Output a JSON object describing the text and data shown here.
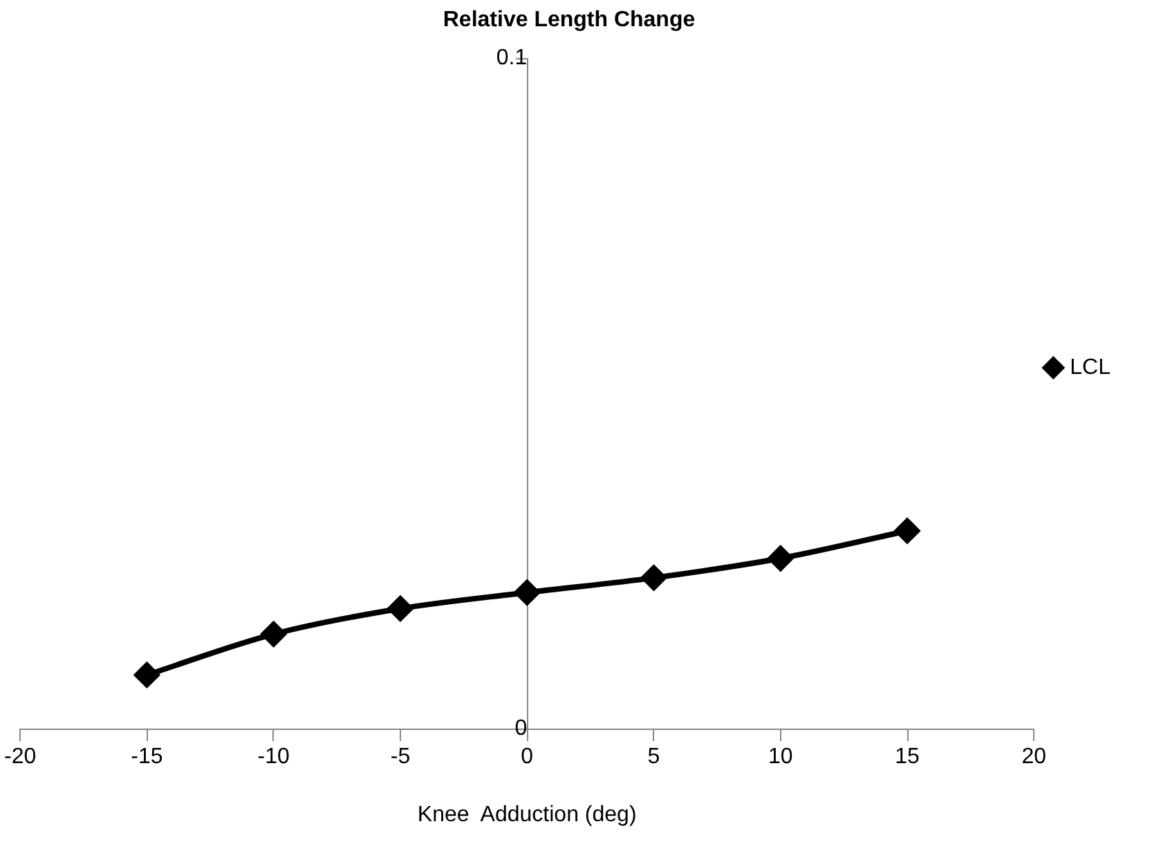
{
  "chart_data": {
    "type": "line",
    "title": "Relative Length Change",
    "xlabel": "Knee  Adduction (deg)",
    "x": [
      -15,
      -10,
      -5,
      0,
      5,
      10,
      15
    ],
    "series": [
      {
        "name": "LCL",
        "color": "#000000",
        "values": [
          0.008,
          0.0141,
          0.0179,
          0.0203,
          0.0225,
          0.0254,
          0.0295
        ]
      }
    ],
    "xlim": [
      -20,
      20
    ],
    "xticks": [
      -20,
      -15,
      -10,
      -5,
      0,
      5,
      10,
      15,
      20
    ],
    "ylim": [
      0,
      0.1
    ],
    "yticks": [
      0,
      0.1
    ],
    "grid": false,
    "legend": "right",
    "marker": "diamond",
    "line_style": "solid"
  }
}
